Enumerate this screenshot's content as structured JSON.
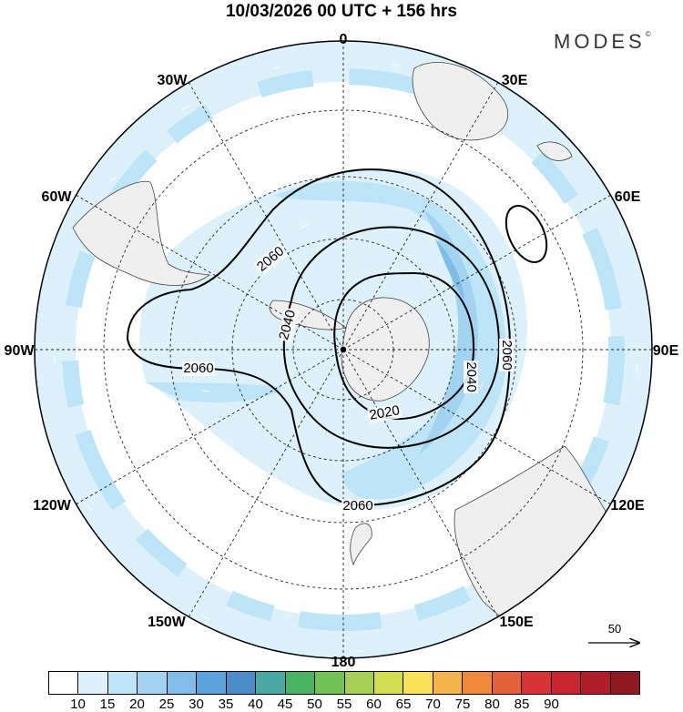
{
  "header": {
    "title": "10/03/2026  00 UTC  + 156 hrs"
  },
  "brand": {
    "logo_text": "MODES",
    "registered_mark": "©"
  },
  "map": {
    "projection": "south-polar-stereographic",
    "longitude_labels": {
      "deg_0": "0",
      "deg_30E": "30E",
      "deg_60E": "60E",
      "deg_90E": "90E",
      "deg_120E": "120E",
      "deg_150E": "150E",
      "deg_180": "180",
      "deg_150W": "150W",
      "deg_120W": "120W",
      "deg_90W": "90W",
      "deg_60W": "60W",
      "deg_30W": "30W"
    },
    "contour_labels": {
      "c2060_a": "2060",
      "c2060_b": "2060",
      "c2060_c": "2060",
      "c2060_d": "2060",
      "c2040_a": "2040",
      "c2040_b": "2040",
      "c2020": "2020"
    },
    "colors": {
      "land": "#efefef",
      "ocean": "#ffffff",
      "wind_10_15": "#ddf1fb",
      "wind_15_20": "#bde5f7",
      "wind_20_25": "#a2d4f1",
      "wind_25_30": "#80bde8"
    }
  },
  "reference_vector": {
    "label": "50"
  },
  "colorbar": {
    "labels": [
      "10",
      "15",
      "20",
      "25",
      "30",
      "35",
      "40",
      "45",
      "50",
      "55",
      "60",
      "65",
      "70",
      "75",
      "80",
      "85",
      "90"
    ],
    "colors": [
      "#ffffff",
      "#ddf1fb",
      "#bde5f7",
      "#a2d4f1",
      "#80bde8",
      "#5ba3da",
      "#4a8dc9",
      "#49a9a4",
      "#48b463",
      "#72c356",
      "#a6d055",
      "#d3dd52",
      "#f8e157",
      "#f5b34c",
      "#ef8a3d",
      "#e5613a",
      "#d93435",
      "#c82630",
      "#b01e2a",
      "#8e1b24"
    ]
  }
}
